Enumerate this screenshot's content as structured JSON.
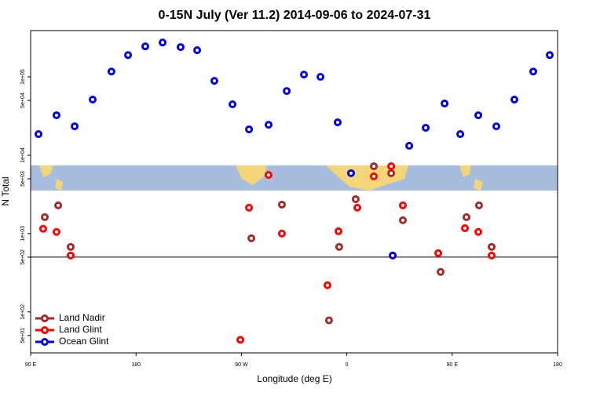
{
  "chart_data": {
    "type": "scatter",
    "title": "0-15N July (Ver 11.2)   2014-09-06 to 2024-07-31",
    "xlabel": "Longitude (deg E)",
    "ylabel": "N Total",
    "xlim": [
      90,
      540
    ],
    "xticks": [
      {
        "value": 90,
        "label": "90 E"
      },
      {
        "value": 180,
        "label": "180"
      },
      {
        "value": 270,
        "label": "90 W"
      },
      {
        "value": 360,
        "label": "0"
      },
      {
        "value": 450,
        "label": "90 E"
      },
      {
        "value": 540,
        "label": "180"
      }
    ],
    "ylim": [
      30,
      390000
    ],
    "log_y": true,
    "yticks": [
      {
        "value": 50,
        "label": "5e+01"
      },
      {
        "value": 100,
        "label": "1e+02"
      },
      {
        "value": 500,
        "label": "5e+02"
      },
      {
        "value": 1000,
        "label": "1e+03"
      },
      {
        "value": 5000,
        "label": "5e+03"
      },
      {
        "value": 10000,
        "label": "1e+04"
      },
      {
        "value": 50000,
        "label": "5e+04"
      },
      {
        "value": 100000,
        "label": "1e+05"
      }
    ],
    "hline": 500,
    "legend": "bottom left",
    "series": [
      {
        "name": "Land Nadir",
        "color": "#a52a2a",
        "x": [
          102.1,
          113.5,
          124.2,
          278.5,
          304.6,
          344.8,
          353.5,
          367.6,
          383.1,
          397.9,
          407.9,
          440.1,
          462.2,
          472.9,
          483.7
        ],
        "values": [
          1620,
          2290,
          676,
          871,
          2340,
          78,
          676,
          2750,
          7240,
          5890,
          1480,
          324,
          1620,
          2290,
          676
        ]
      },
      {
        "name": "Land Glint",
        "color": "#ff0000",
        "x": [
          100.7,
          112.1,
          124.2,
          269.1,
          276.5,
          293.2,
          304.6,
          343.5,
          352.9,
          369,
          383.1,
          397.9,
          407.9,
          438.1,
          460.9,
          472.3,
          483.7
        ],
        "values": [
          1150,
          1050,
          525,
          44,
          2140,
          5600,
          1000,
          219,
          1070,
          2140,
          5370,
          7240,
          2290,
          562,
          1170,
          1050,
          525
        ]
      },
      {
        "name": "Ocean Glint",
        "color": "#0000ee",
        "x": [
          96.7,
          112.1,
          127.6,
          143,
          159,
          173.2,
          187.9,
          202.7,
          218.1,
          232.2,
          246.9,
          262.4,
          276.5,
          293.2,
          308.7,
          323.4,
          337.5,
          352.2,
          363.6,
          399.2,
          413.3,
          427.4,
          443.5,
          456.9,
          472.3,
          487.7,
          503.1,
          519.2,
          533.3
        ],
        "values": [
          18600,
          32400,
          23400,
          51300,
          117000,
          190000,
          245000,
          275000,
          240000,
          219000,
          89000,
          44700,
          21400,
          24500,
          66000,
          107000,
          100000,
          26300,
          5900,
          525,
          13200,
          22400,
          45700,
          18600,
          32400,
          23400,
          51300,
          117000,
          190000
        ]
      }
    ]
  }
}
